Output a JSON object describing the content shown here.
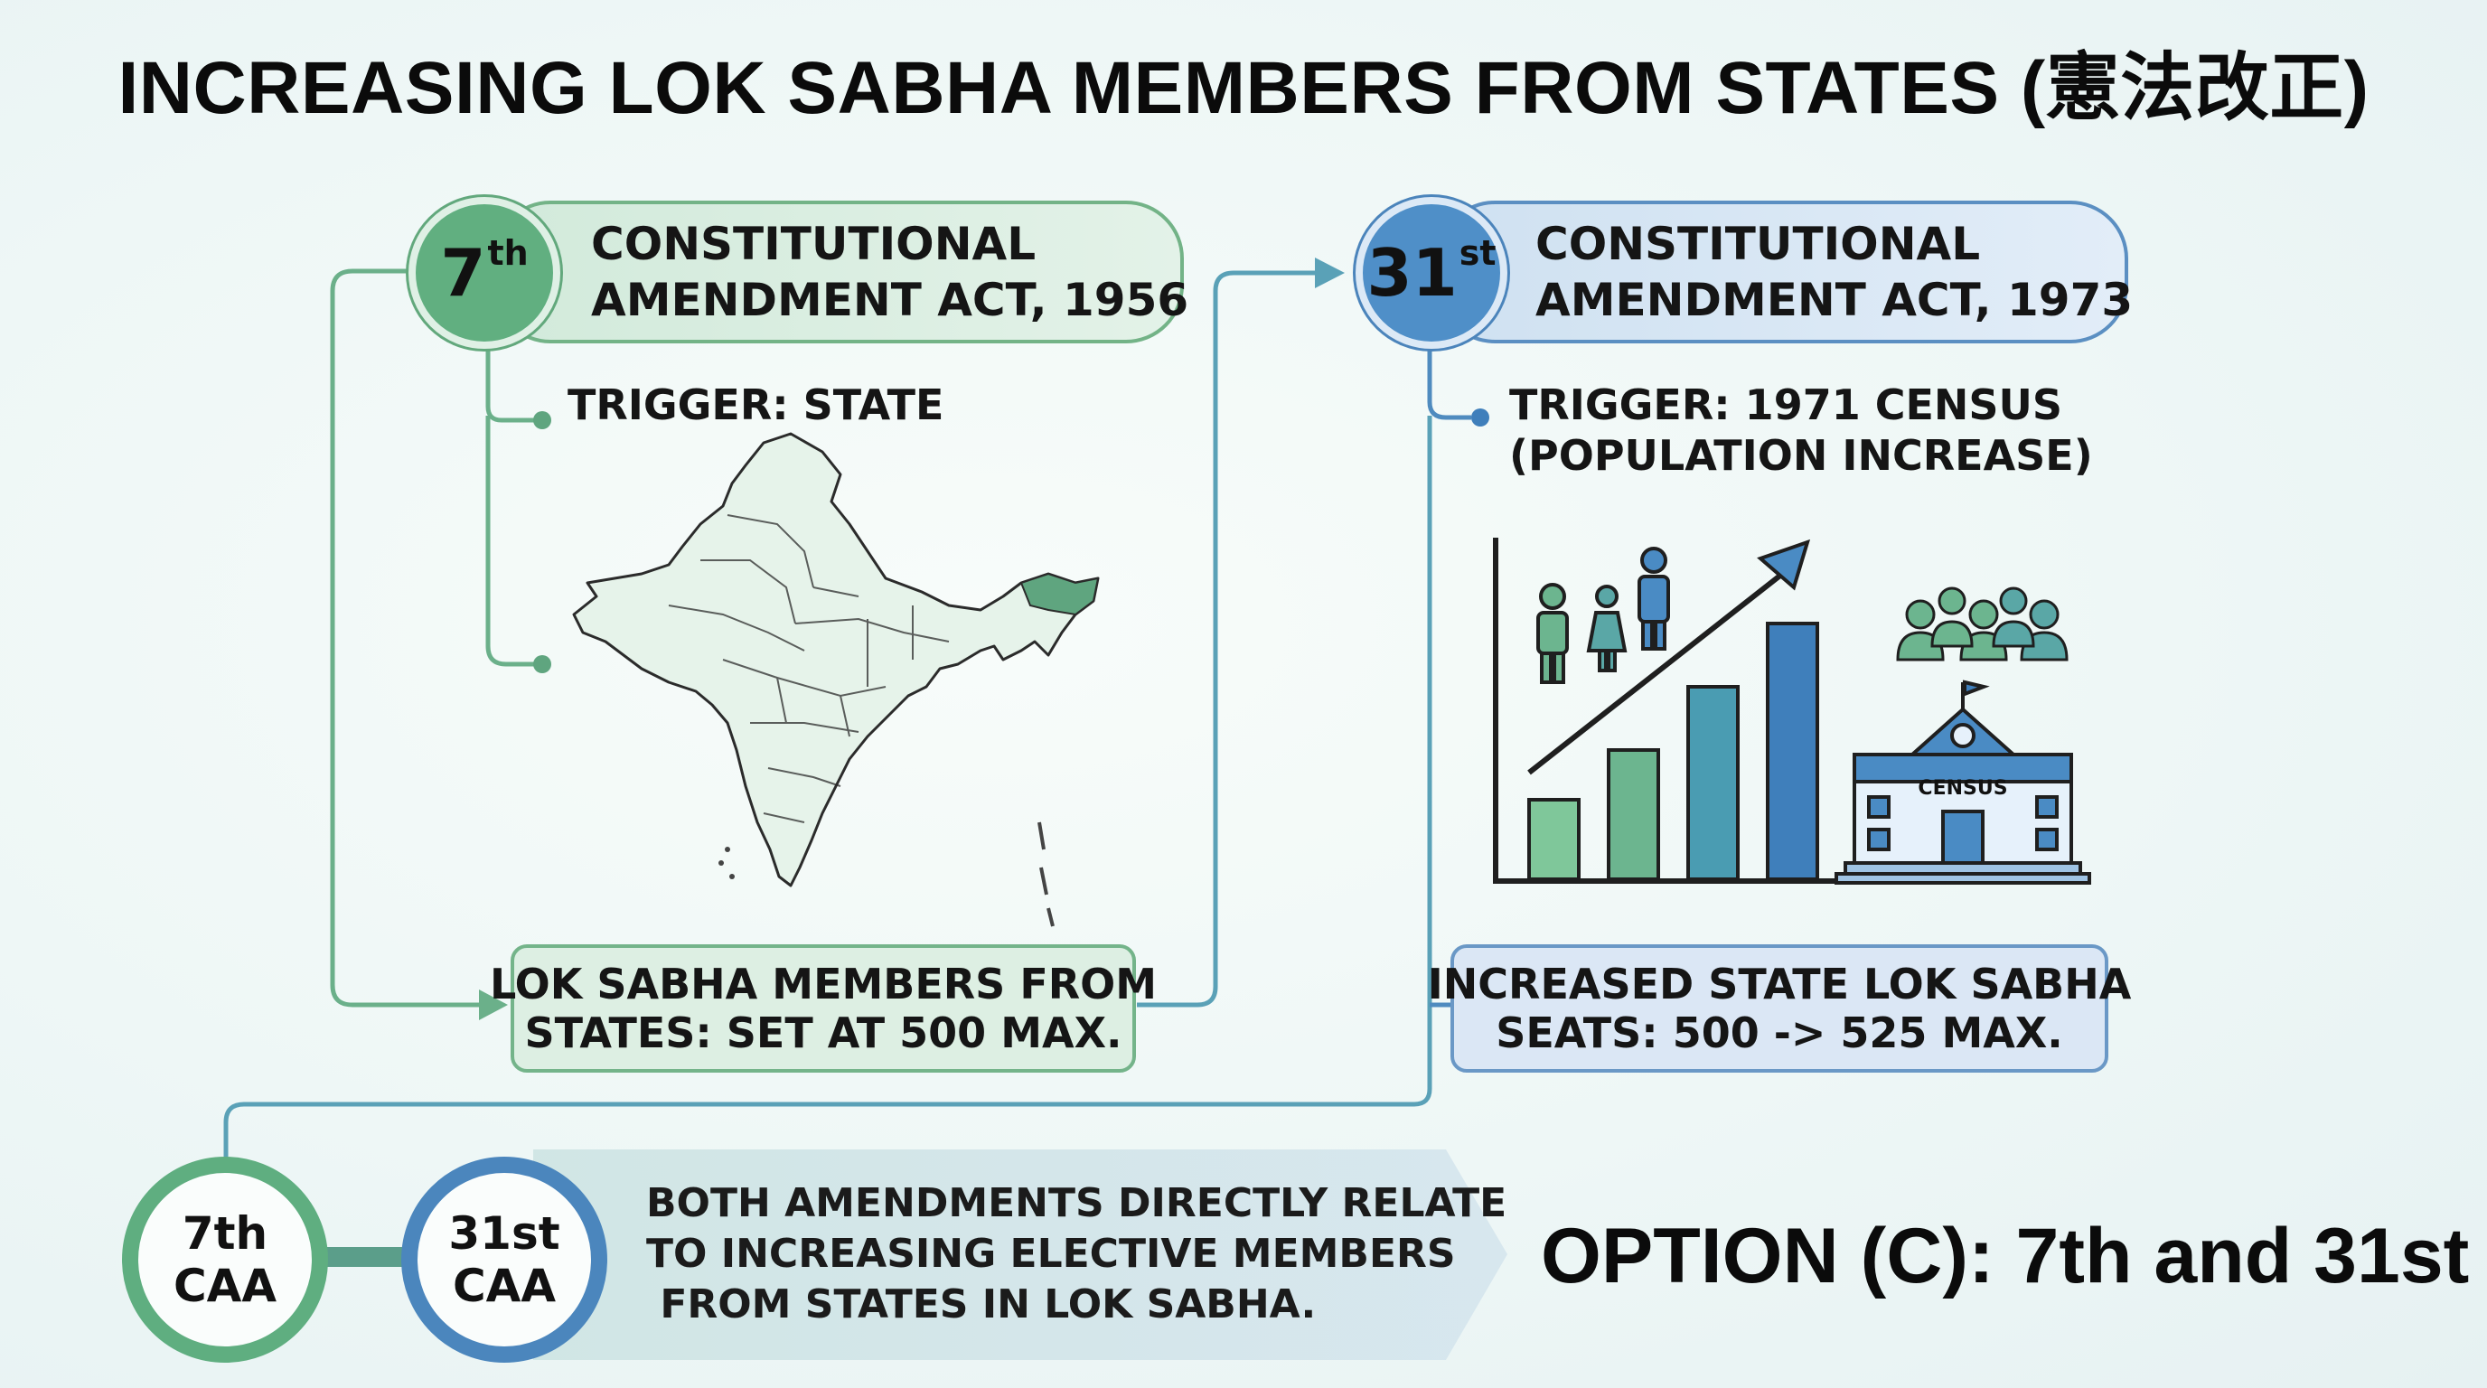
{
  "title": "INCREASING LOK SABHA MEMBERS FROM STATES (憲法改正)",
  "colors": {
    "green": "#61af80",
    "blue": "#4f8fc8",
    "background": "#eef7f6"
  },
  "amendment_7": {
    "badge_number": "7",
    "badge_suffix": "th",
    "title_line1": "CONSTITUTIONAL",
    "title_line2": "AMENDMENT ACT, 1956",
    "trigger": "TRIGGER: STATE",
    "result_line1": "LOK SABHA MEMBERS FROM",
    "result_line2": "STATES: SET AT 500 MAX.",
    "illustration": "india-map-icon"
  },
  "amendment_31": {
    "badge_number": "31",
    "badge_suffix": "st",
    "title_line1": "CONSTITUTIONAL",
    "title_line2": "AMENDMENT ACT, 1973",
    "trigger_line1": "TRIGGER: 1971 CENSUS",
    "trigger_line2": "(POPULATION INCREASE)",
    "result_line1": "INCREASED STATE LOK SABHA",
    "result_line2": "SEATS: 500 -> 525 MAX.",
    "illustration": "population-growth-chart-icon",
    "building_label": "CENSUS"
  },
  "bottom": {
    "ring_7_line1": "7th",
    "ring_7_line2": "CAA",
    "ring_31_line1": "31st",
    "ring_31_line2": "CAA",
    "summary_line1": "BOTH AMENDMENTS DIRECTLY RELATE",
    "summary_line2": "TO INCREASING ELECTIVE MEMBERS",
    "summary_line3": " FROM STATES IN LOK SABHA.",
    "answer": "OPTION (C): 7th and 31st"
  }
}
